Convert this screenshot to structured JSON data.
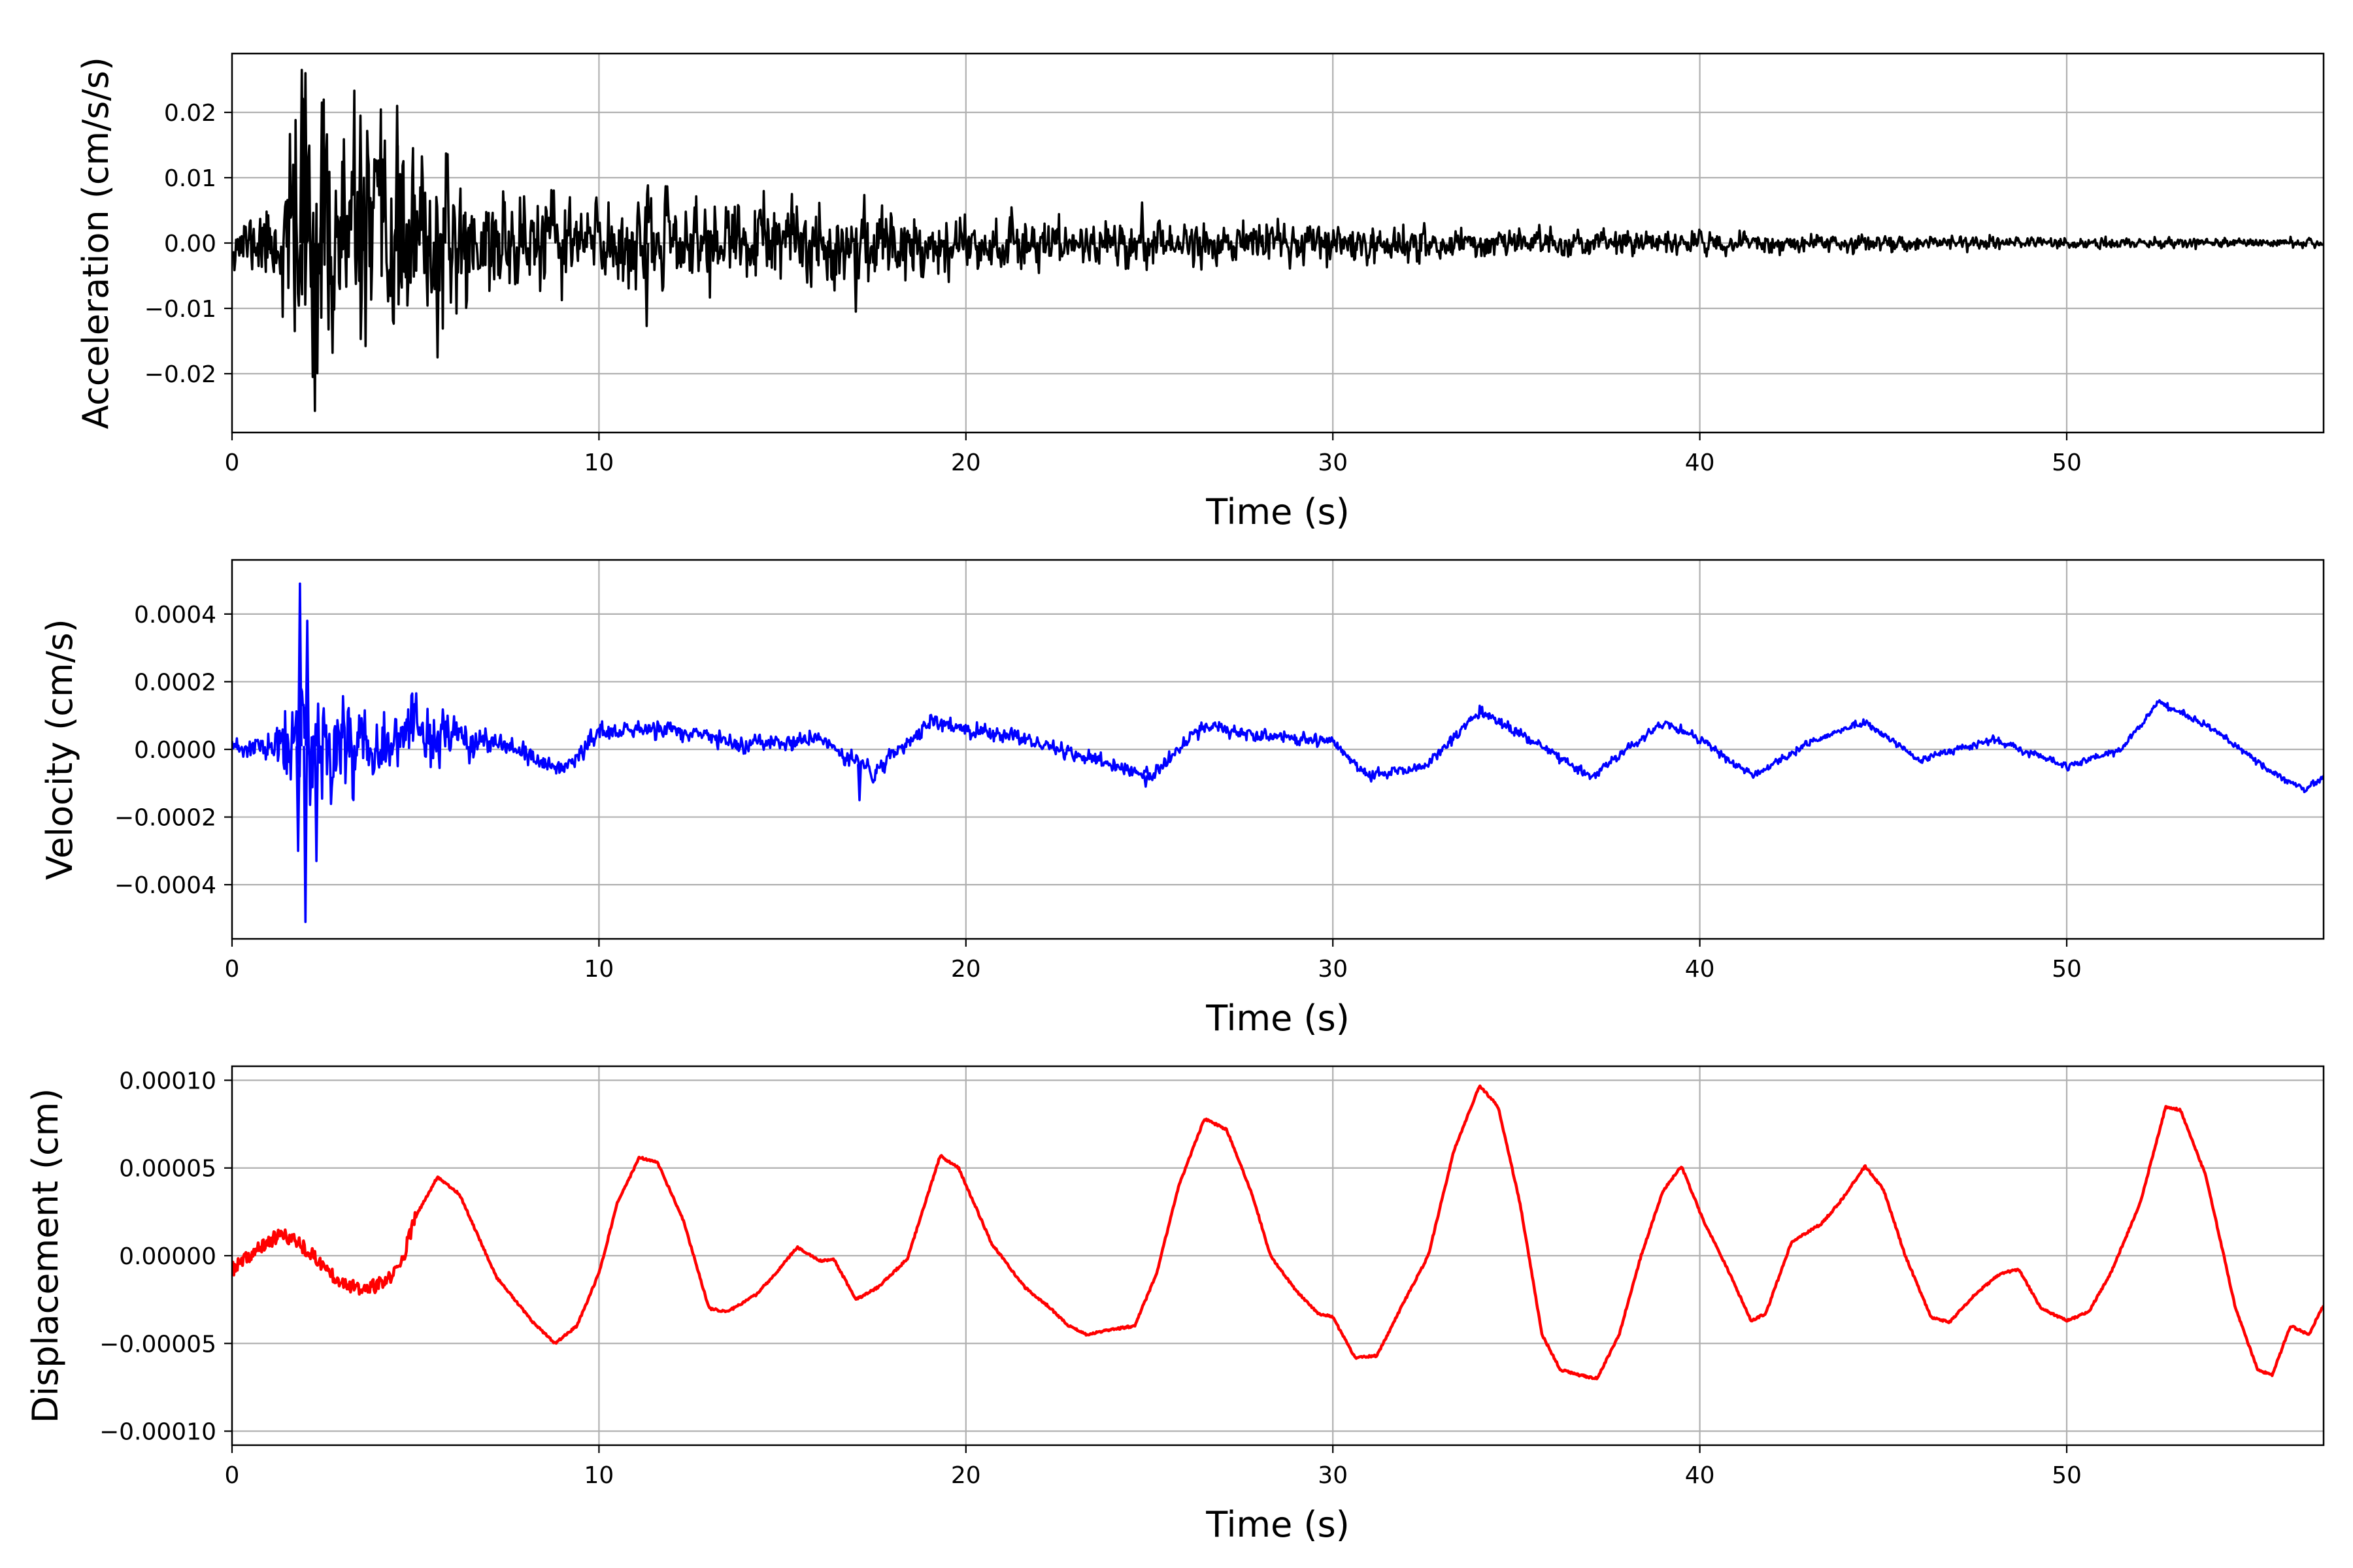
{
  "figure": {
    "background": "#ffffff",
    "grid_color": "#b0b0b0"
  },
  "chart_data": [
    {
      "type": "line",
      "xlabel": "Time (s)",
      "ylabel": "Acceleration (cm/s/s)",
      "xlim": [
        0,
        57
      ],
      "ylim": [
        -0.029,
        0.029
      ],
      "xticks": [
        0,
        10,
        20,
        30,
        40,
        50
      ],
      "xtick_labels": [
        "0",
        "10",
        "20",
        "30",
        "40",
        "50"
      ],
      "yticks": [
        -0.02,
        -0.01,
        0.0,
        0.01,
        0.02
      ],
      "ytick_labels": [
        "−0.02",
        "−0.01",
        "0.00",
        "0.01",
        "0.02"
      ],
      "grid": true,
      "series": [
        {
          "color": "#000000",
          "style": "noisy",
          "seed": 11,
          "envelope": [
            [
              0,
              0.004
            ],
            [
              1.2,
              0.007
            ],
            [
              1.8,
              0.026
            ],
            [
              2.3,
              0.022
            ],
            [
              3.5,
              0.02
            ],
            [
              5,
              0.014
            ],
            [
              7,
              0.009
            ],
            [
              10,
              0.008
            ],
            [
              14,
              0.007
            ],
            [
              17,
              0.0065
            ],
            [
              20,
              0.005
            ],
            [
              25,
              0.004
            ],
            [
              30,
              0.0032
            ],
            [
              35,
              0.0025
            ],
            [
              40,
              0.0018
            ],
            [
              45,
              0.0014
            ],
            [
              50,
              0.001
            ],
            [
              57,
              0.0008
            ]
          ],
          "baseline": [
            [
              0,
              0
            ],
            [
              57,
              0
            ]
          ],
          "peaks": [
            [
              1.9,
              0.0265
            ],
            [
              2.0,
              0.026
            ],
            [
              2.2,
              -0.0205
            ],
            [
              2.45,
              0.0215
            ],
            [
              3.5,
              0.0195
            ],
            [
              4.5,
              0.021
            ],
            [
              5.6,
              -0.0175
            ],
            [
              11.3,
              -0.0127
            ],
            [
              17.0,
              -0.0105
            ],
            [
              24.8,
              0.0062
            ]
          ]
        }
      ]
    },
    {
      "type": "line",
      "xlabel": "Time (s)",
      "ylabel": "Velocity (cm/s)",
      "xlim": [
        0,
        57
      ],
      "ylim": [
        -0.00056,
        0.00056
      ],
      "xticks": [
        0,
        10,
        20,
        30,
        40,
        50
      ],
      "xtick_labels": [
        "0",
        "10",
        "20",
        "30",
        "40",
        "50"
      ],
      "yticks": [
        -0.0004,
        -0.0002,
        0.0,
        0.0002,
        0.0004
      ],
      "ytick_labels": [
        "−0.0004",
        "−0.0002",
        "0.0000",
        "0.0002",
        "0.0004"
      ],
      "grid": true,
      "series": [
        {
          "color": "#0000ff",
          "style": "noisy",
          "seed": 23,
          "envelope": [
            [
              0,
              3e-05
            ],
            [
              1.2,
              6e-05
            ],
            [
              1.8,
              0.00025
            ],
            [
              2.4,
              0.0002
            ],
            [
              3.5,
              0.00014
            ],
            [
              5,
              0.00011
            ],
            [
              7,
              4e-05
            ],
            [
              10,
              2.8e-05
            ],
            [
              20,
              2.5e-05
            ],
            [
              30,
              2e-05
            ],
            [
              40,
              1.5e-05
            ],
            [
              50,
              1.2e-05
            ],
            [
              57,
              1e-05
            ]
          ],
          "baseline": [
            [
              0,
              0.0
            ],
            [
              2,
              1e-05
            ],
            [
              5,
              4e-05
            ],
            [
              7,
              2e-05
            ],
            [
              9,
              -6e-05
            ],
            [
              10,
              5e-05
            ],
            [
              12,
              6e-05
            ],
            [
              14,
              1e-05
            ],
            [
              16,
              3e-05
            ],
            [
              17.5,
              -7e-05
            ],
            [
              19,
              8e-05
            ],
            [
              22,
              2e-05
            ],
            [
              25,
              -8e-05
            ],
            [
              26.5,
              7e-05
            ],
            [
              28,
              4e-05
            ],
            [
              30,
              2e-05
            ],
            [
              31,
              -8e-05
            ],
            [
              32.5,
              -5e-05
            ],
            [
              34,
              0.00011
            ],
            [
              35,
              5e-05
            ],
            [
              37,
              -8e-05
            ],
            [
              39,
              8e-05
            ],
            [
              40,
              3e-05
            ],
            [
              41.5,
              -8e-05
            ],
            [
              43,
              2e-05
            ],
            [
              44.5,
              8e-05
            ],
            [
              46,
              -3e-05
            ],
            [
              48,
              3e-05
            ],
            [
              50,
              -5e-05
            ],
            [
              51.5,
              0.0
            ],
            [
              52.5,
              0.00014
            ],
            [
              54,
              6e-05
            ],
            [
              55.5,
              -6e-05
            ],
            [
              56.5,
              -0.00012
            ],
            [
              57,
              -8e-05
            ]
          ],
          "peaks": [
            [
              1.85,
              0.00049
            ],
            [
              2.05,
              0.00038
            ],
            [
              2.0,
              -0.00051
            ],
            [
              1.8,
              -0.0003
            ],
            [
              2.3,
              -0.00033
            ],
            [
              17.1,
              -0.00015
            ],
            [
              24.9,
              -0.00011
            ]
          ]
        }
      ]
    },
    {
      "type": "line",
      "xlabel": "Time (s)",
      "ylabel": "Displacement (cm)",
      "xlim": [
        0,
        57
      ],
      "ylim": [
        -0.000108,
        0.000108
      ],
      "xticks": [
        0,
        10,
        20,
        30,
        40,
        50
      ],
      "xtick_labels": [
        "0",
        "10",
        "20",
        "30",
        "40",
        "50"
      ],
      "yticks": [
        -0.0001,
        -5e-05,
        0.0,
        5e-05,
        0.0001
      ],
      "ytick_labels": [
        "−0.00010",
        "−0.00005",
        "0.00000",
        "0.00005",
        "0.00010"
      ],
      "grid": true,
      "series": [
        {
          "color": "#ff0000",
          "style": "smooth",
          "seed": 37,
          "points": [
            [
              0,
              -8e-06
            ],
            [
              0.8,
              5e-06
            ],
            [
              1.3,
              1.2e-05
            ],
            [
              1.8,
              8e-06
            ],
            [
              2.2,
              0.0
            ],
            [
              2.8,
              -1.2e-05
            ],
            [
              3.5,
              -2e-05
            ],
            [
              4.2,
              -1.5e-05
            ],
            [
              4.6,
              -5e-06
            ],
            [
              5.0,
              2.2e-05
            ],
            [
              5.6,
              4.5e-05
            ],
            [
              6.2,
              3.5e-05
            ],
            [
              7.2,
              -1.2e-05
            ],
            [
              8.2,
              -3.8e-05
            ],
            [
              8.8,
              -5e-05
            ],
            [
              9.4,
              -4e-05
            ],
            [
              10.0,
              -1e-05
            ],
            [
              10.5,
              3e-05
            ],
            [
              11.1,
              5.6e-05
            ],
            [
              11.6,
              5.3e-05
            ],
            [
              12.3,
              2e-05
            ],
            [
              13.0,
              -3e-05
            ],
            [
              13.5,
              -3.2e-05
            ],
            [
              14.3,
              -2.2e-05
            ],
            [
              14.9,
              -8e-06
            ],
            [
              15.4,
              5e-06
            ],
            [
              16.0,
              -3e-06
            ],
            [
              16.4,
              -2e-06
            ],
            [
              17.0,
              -2.5e-05
            ],
            [
              17.6,
              -1.8e-05
            ],
            [
              18.4,
              -2e-06
            ],
            [
              19.3,
              5.7e-05
            ],
            [
              19.8,
              5e-05
            ],
            [
              20.7,
              7e-06
            ],
            [
              21.6,
              -1.8e-05
            ],
            [
              22.2,
              -2.8e-05
            ],
            [
              22.8,
              -4e-05
            ],
            [
              23.3,
              -4.5e-05
            ],
            [
              24.0,
              -4.2e-05
            ],
            [
              24.6,
              -4e-05
            ],
            [
              25.2,
              -1e-05
            ],
            [
              25.8,
              4e-05
            ],
            [
              26.5,
              7.8e-05
            ],
            [
              27.1,
              7.2e-05
            ],
            [
              27.8,
              3.5e-05
            ],
            [
              28.3,
              0.0
            ],
            [
              29.0,
              -2e-05
            ],
            [
              29.6,
              -3.3e-05
            ],
            [
              30.0,
              -3.5e-05
            ],
            [
              30.6,
              -5.8e-05
            ],
            [
              31.2,
              -5.7e-05
            ],
            [
              31.9,
              -2.8e-05
            ],
            [
              32.6,
              0.0
            ],
            [
              33.3,
              6e-05
            ],
            [
              34.0,
              9.7e-05
            ],
            [
              34.5,
              8.5e-05
            ],
            [
              35.1,
              3e-05
            ],
            [
              35.7,
              -4.5e-05
            ],
            [
              36.2,
              -6.5e-05
            ],
            [
              36.7,
              -6.8e-05
            ],
            [
              37.2,
              -7e-05
            ],
            [
              37.8,
              -4.5e-05
            ],
            [
              38.4,
              0.0
            ],
            [
              39.0,
              3.7e-05
            ],
            [
              39.5,
              5.1e-05
            ],
            [
              40.1,
              2e-05
            ],
            [
              40.7,
              -5e-06
            ],
            [
              41.4,
              -3.7e-05
            ],
            [
              41.8,
              -3.3e-05
            ],
            [
              42.5,
              8e-06
            ],
            [
              43.3,
              1.8e-05
            ],
            [
              43.8,
              3e-05
            ],
            [
              44.5,
              5.1e-05
            ],
            [
              45.0,
              3.8e-05
            ],
            [
              45.6,
              0.0
            ],
            [
              46.3,
              -3.5e-05
            ],
            [
              46.8,
              -3.8e-05
            ],
            [
              47.5,
              -2.2e-05
            ],
            [
              48.2,
              -1e-05
            ],
            [
              48.7,
              -8e-06
            ],
            [
              49.3,
              -3e-05
            ],
            [
              50.0,
              -3.7e-05
            ],
            [
              50.6,
              -3.2e-05
            ],
            [
              51.2,
              -1e-05
            ],
            [
              52.0,
              3e-05
            ],
            [
              52.7,
              8.5e-05
            ],
            [
              53.1,
              8.3e-05
            ],
            [
              53.8,
              4.5e-05
            ],
            [
              54.6,
              -3e-05
            ],
            [
              55.2,
              -6.5e-05
            ],
            [
              55.6,
              -6.8e-05
            ],
            [
              56.1,
              -4e-05
            ],
            [
              56.6,
              -4.5e-05
            ],
            [
              57.0,
              -2.8e-05
            ]
          ]
        }
      ]
    }
  ]
}
